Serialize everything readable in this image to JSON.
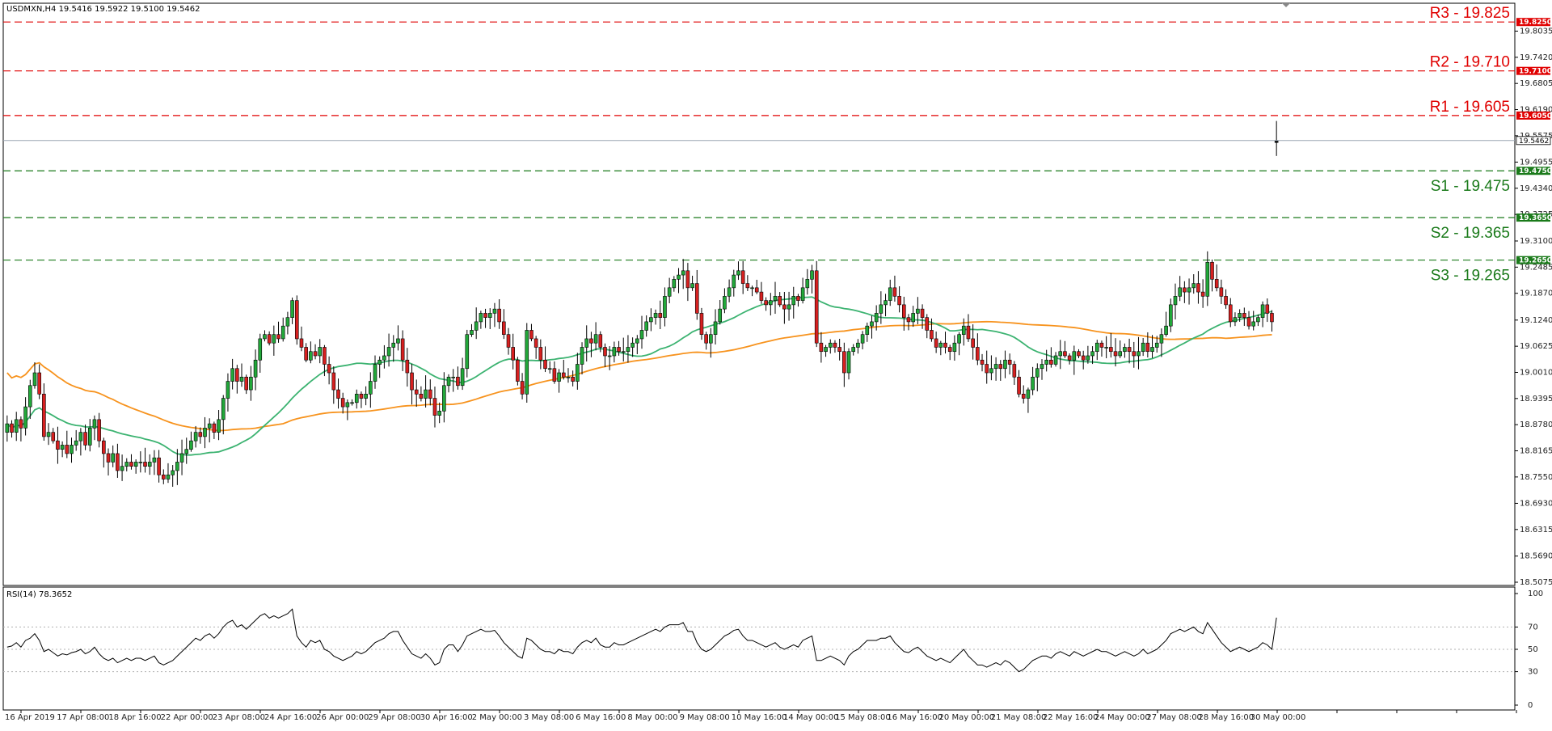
{
  "chart_data": {
    "type": "candlestick",
    "title": "USDMXN,H4  19.5416 19.5922 19.5100 19.5462",
    "ylim": [
      18.5075,
      19.8425
    ],
    "price_ticks": [
      "19.8035",
      "19.7420",
      "19.6805",
      "19.6190",
      "19.5575",
      "19.4955",
      "19.4340",
      "19.3725",
      "19.3100",
      "19.2485",
      "19.1870",
      "19.1240",
      "19.0625",
      "19.0010",
      "18.9395",
      "18.8780",
      "18.8165",
      "18.7550",
      "18.6930",
      "18.6315",
      "18.5690",
      "18.5075"
    ],
    "current_price": {
      "value": 19.5462,
      "label": "19.5462"
    },
    "levels": [
      {
        "name": "R3 - 19.825",
        "value": 19.825,
        "tag": "19.8250",
        "color": "#e00000"
      },
      {
        "name": "R2 - 19.710",
        "value": 19.71,
        "tag": "19.7100",
        "color": "#e00000"
      },
      {
        "name": "R1 - 19.605",
        "value": 19.605,
        "tag": "19.6050",
        "color": "#e00000"
      },
      {
        "name": "S1 - 19.475",
        "value": 19.475,
        "tag": "19.4750",
        "color": "#1a7a1a"
      },
      {
        "name": "S2 - 19.365",
        "value": 19.365,
        "tag": "19.3650",
        "color": "#1a7a1a"
      },
      {
        "name": "S3 - 19.265",
        "value": 19.265,
        "tag": "19.2650",
        "color": "#1a7a1a"
      }
    ],
    "x_labels": [
      "16 Apr 2019",
      "17 Apr 08:00",
      "18 Apr 16:00",
      "22 Apr 00:00",
      "23 Apr 08:00",
      "24 Apr 16:00",
      "26 Apr 00:00",
      "29 Apr 08:00",
      "30 Apr 16:00",
      "2 May 00:00",
      "3 May 08:00",
      "6 May 16:00",
      "8 May 00:00",
      "9 May 08:00",
      "10 May 16:00",
      "14 May 00:00",
      "15 May 08:00",
      "16 May 16:00",
      "20 May 00:00",
      "21 May 08:00",
      "22 May 16:00",
      "24 May 00:00",
      "27 May 08:00",
      "28 May 16:00",
      "30 May 00:00"
    ],
    "close": [
      18.88,
      18.86,
      18.89,
      18.87,
      18.92,
      18.97,
      19.0,
      18.95,
      18.85,
      18.86,
      18.84,
      18.82,
      18.83,
      18.81,
      18.83,
      18.84,
      18.86,
      18.83,
      18.87,
      18.89,
      18.84,
      18.81,
      18.79,
      18.81,
      18.77,
      18.78,
      18.79,
      18.78,
      18.79,
      18.79,
      18.78,
      18.79,
      18.8,
      18.76,
      18.75,
      18.76,
      18.77,
      18.79,
      18.81,
      18.82,
      18.84,
      18.86,
      18.85,
      18.87,
      18.88,
      18.86,
      18.89,
      18.94,
      18.98,
      19.01,
      18.98,
      18.99,
      18.96,
      18.99,
      19.03,
      19.08,
      19.09,
      19.07,
      19.09,
      19.08,
      19.11,
      19.13,
      19.17,
      19.08,
      19.06,
      19.03,
      19.05,
      19.04,
      19.06,
      19.02,
      19.0,
      18.96,
      18.94,
      18.92,
      18.93,
      18.93,
      18.95,
      18.94,
      18.95,
      18.98,
      19.02,
      19.03,
      19.04,
      19.06,
      19.07,
      19.08,
      19.03,
      19.0,
      18.96,
      18.95,
      18.94,
      18.96,
      18.94,
      18.9,
      18.91,
      18.97,
      18.99,
      18.99,
      18.97,
      19.01,
      19.09,
      19.1,
      19.12,
      19.14,
      19.13,
      19.14,
      19.15,
      19.12,
      19.09,
      19.06,
      19.03,
      18.98,
      18.95,
      19.1,
      19.08,
      19.06,
      19.03,
      19.01,
      19.01,
      18.98,
      19.0,
      18.99,
      18.99,
      18.98,
      19.02,
      19.06,
      19.08,
      19.07,
      19.09,
      19.06,
      19.04,
      19.04,
      19.06,
      19.05,
      19.05,
      19.06,
      19.07,
      19.08,
      19.1,
      19.12,
      19.13,
      19.14,
      19.13,
      19.18,
      19.2,
      19.22,
      19.23,
      19.24,
      19.2,
      19.21,
      19.14,
      19.09,
      19.07,
      19.09,
      19.12,
      19.15,
      19.18,
      19.2,
      19.23,
      19.24,
      19.21,
      19.2,
      19.2,
      19.19,
      19.17,
      19.16,
      19.17,
      19.18,
      19.16,
      19.15,
      19.16,
      19.18,
      19.17,
      19.2,
      19.22,
      19.24,
      19.07,
      19.05,
      19.06,
      19.07,
      19.06,
      19.05,
      19.0,
      19.05,
      19.06,
      19.07,
      19.09,
      19.11,
      19.12,
      19.14,
      19.16,
      19.17,
      19.2,
      19.18,
      19.16,
      19.13,
      19.12,
      19.14,
      19.15,
      19.13,
      19.1,
      19.08,
      19.06,
      19.07,
      19.06,
      19.05,
      19.07,
      19.09,
      19.11,
      19.08,
      19.06,
      19.03,
      19.02,
      19.0,
      19.01,
      19.02,
      19.01,
      19.03,
      19.02,
      18.99,
      18.95,
      18.94,
      18.96,
      18.99,
      19.01,
      19.02,
      19.03,
      19.02,
      19.04,
      19.05,
      19.04,
      19.03,
      19.05,
      19.04,
      19.03,
      19.04,
      19.05,
      19.07,
      19.06,
      19.06,
      19.05,
      19.04,
      19.05,
      19.06,
      19.05,
      19.04,
      19.05,
      19.07,
      19.05,
      19.06,
      19.07,
      19.09,
      19.11,
      19.16,
      19.18,
      19.2,
      19.19,
      19.2,
      19.21,
      19.19,
      19.18,
      19.26,
      19.22,
      19.2,
      19.18,
      19.16,
      19.12,
      19.13,
      19.14,
      19.13,
      19.11,
      19.12,
      19.13,
      19.16,
      19.14,
      19.12,
      19.5462
    ]
  },
  "rsi_panel": {
    "title": "RSI(14) 78.3652",
    "ticks": [
      "100",
      "70",
      "50",
      "30",
      "0"
    ],
    "levels": [
      70,
      50,
      30
    ],
    "values": [
      52,
      53,
      56,
      52,
      58,
      60,
      64,
      58,
      48,
      50,
      47,
      44,
      46,
      45,
      47,
      48,
      50,
      46,
      48,
      52,
      46,
      42,
      40,
      42,
      38,
      40,
      42,
      40,
      42,
      42,
      40,
      42,
      44,
      38,
      36,
      38,
      40,
      44,
      48,
      52,
      56,
      60,
      58,
      62,
      64,
      60,
      64,
      70,
      74,
      76,
      70,
      72,
      68,
      72,
      76,
      80,
      82,
      78,
      80,
      78,
      80,
      82,
      86,
      62,
      56,
      52,
      58,
      56,
      58,
      50,
      48,
      44,
      42,
      40,
      42,
      44,
      48,
      46,
      48,
      52,
      56,
      58,
      60,
      64,
      66,
      66,
      58,
      52,
      46,
      44,
      42,
      46,
      42,
      36,
      38,
      50,
      54,
      54,
      48,
      54,
      62,
      64,
      66,
      68,
      66,
      66,
      67,
      62,
      56,
      52,
      48,
      44,
      42,
      60,
      58,
      54,
      50,
      48,
      48,
      46,
      50,
      48,
      48,
      46,
      52,
      56,
      58,
      56,
      60,
      54,
      52,
      52,
      56,
      54,
      54,
      56,
      58,
      60,
      62,
      64,
      66,
      68,
      66,
      70,
      72,
      72,
      72,
      74,
      66,
      66,
      56,
      50,
      48,
      50,
      54,
      58,
      62,
      64,
      67,
      68,
      62,
      58,
      58,
      56,
      54,
      52,
      54,
      56,
      52,
      50,
      52,
      54,
      52,
      58,
      60,
      62,
      40,
      40,
      42,
      44,
      42,
      40,
      36,
      44,
      48,
      50,
      54,
      58,
      58,
      58,
      60,
      60,
      62,
      56,
      52,
      48,
      47,
      50,
      52,
      48,
      44,
      42,
      40,
      42,
      40,
      38,
      42,
      46,
      50,
      44,
      40,
      36,
      36,
      34,
      36,
      38,
      36,
      40,
      38,
      34,
      30,
      32,
      36,
      40,
      42,
      44,
      44,
      42,
      46,
      48,
      46,
      44,
      48,
      46,
      44,
      46,
      48,
      50,
      48,
      48,
      46,
      44,
      46,
      48,
      46,
      44,
      46,
      50,
      46,
      48,
      50,
      54,
      58,
      64,
      66,
      68,
      66,
      68,
      70,
      66,
      64,
      74,
      68,
      62,
      56,
      52,
      48,
      50,
      52,
      50,
      48,
      50,
      52,
      56,
      54,
      50,
      78.3652
    ]
  }
}
